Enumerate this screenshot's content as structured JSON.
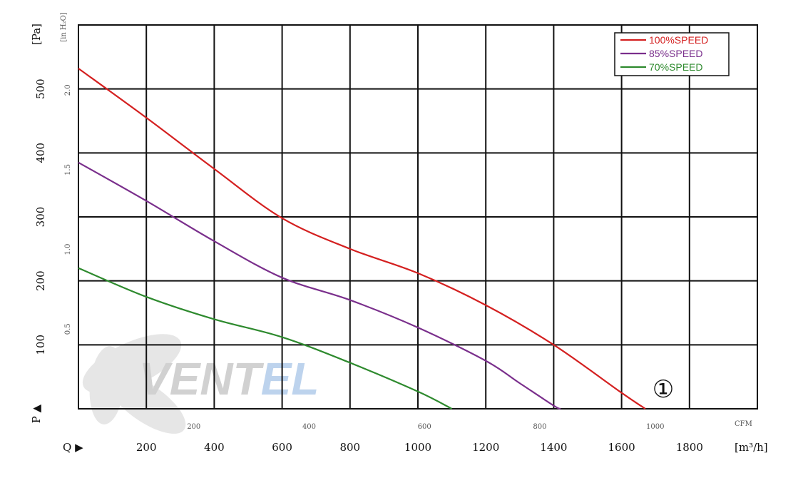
{
  "chart_data": {
    "type": "line",
    "title": "",
    "x_primary": {
      "label": "[m³/h]",
      "marker": "Q ▶",
      "ticks": [
        200,
        400,
        600,
        800,
        1000,
        1200,
        1400,
        1600,
        1800
      ],
      "range": [
        0,
        2000
      ]
    },
    "x_secondary": {
      "label": "CFM",
      "ticks": [
        "200",
        "400",
        "600",
        "800",
        "1000"
      ]
    },
    "y_primary": {
      "label": "[Pa]",
      "marker": "P ▲",
      "ticks": [
        100,
        200,
        300,
        400,
        500
      ],
      "range": [
        0,
        600
      ]
    },
    "y_secondary": {
      "label": "[in H₂O]",
      "ticks": [
        "0.5",
        "1.0",
        "1.5",
        "2.0"
      ]
    },
    "grid": true,
    "legend_position": "top-right",
    "curve_marker": "①",
    "watermark": "VENTEL",
    "series": [
      {
        "name": "100%SPEED",
        "color": "#d42020",
        "points": [
          [
            0,
            532
          ],
          [
            200,
            455
          ],
          [
            400,
            375
          ],
          [
            600,
            298
          ],
          [
            800,
            250
          ],
          [
            1000,
            212
          ],
          [
            1200,
            162
          ],
          [
            1400,
            100
          ],
          [
            1600,
            25
          ],
          [
            1670,
            0
          ]
        ]
      },
      {
        "name": "85%SPEED",
        "color": "#7a2f8c",
        "points": [
          [
            0,
            385
          ],
          [
            200,
            325
          ],
          [
            400,
            262
          ],
          [
            600,
            205
          ],
          [
            800,
            170
          ],
          [
            1000,
            127
          ],
          [
            1200,
            75
          ],
          [
            1300,
            40
          ],
          [
            1400,
            5
          ],
          [
            1420,
            0
          ]
        ]
      },
      {
        "name": "70%SPEED",
        "color": "#2e8a2e",
        "points": [
          [
            0,
            220
          ],
          [
            200,
            175
          ],
          [
            400,
            140
          ],
          [
            600,
            112
          ],
          [
            800,
            72
          ],
          [
            1000,
            27
          ],
          [
            1100,
            0
          ]
        ]
      }
    ]
  }
}
